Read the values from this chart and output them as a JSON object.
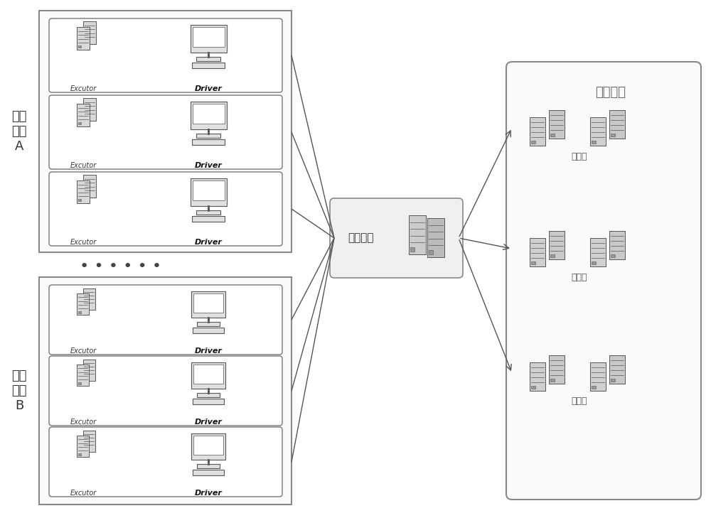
{
  "bg_color": "#ffffff",
  "cluster_A_label": "物理\n集群\nA",
  "cluster_B_label": "物理\n集群\nB",
  "config_center_label": "配置中心",
  "dispatch_cluster_label": "调度集群",
  "resource_label": "资源库",
  "executor_label": "Excutor",
  "driver_label": "Driver"
}
